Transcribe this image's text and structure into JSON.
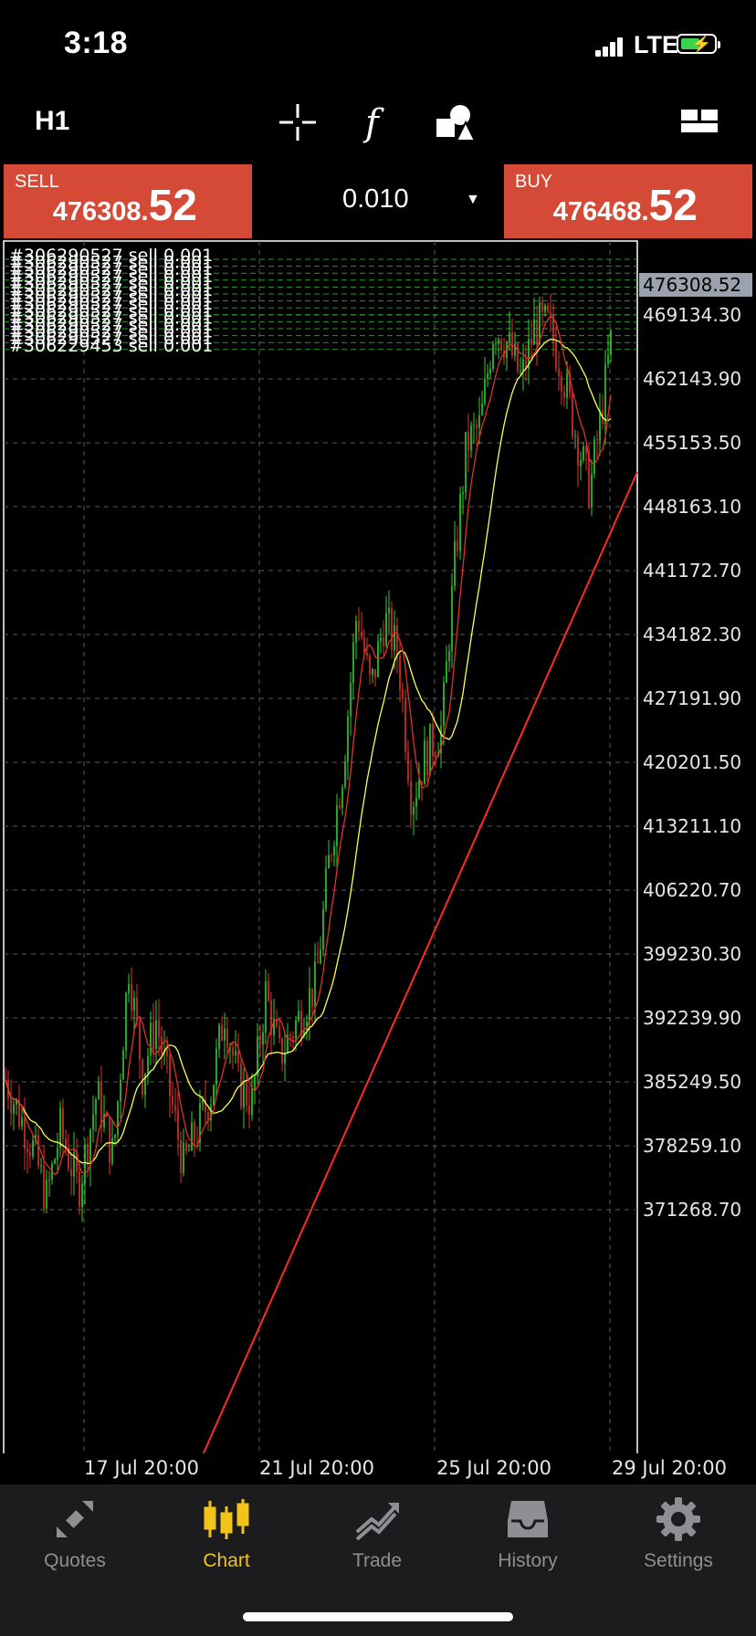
{
  "status_bar": {
    "time": "3:18",
    "network": "LTE"
  },
  "toolbar": {
    "timeframe": "H1",
    "icons": [
      "crosshair-icon",
      "indicators-icon",
      "objects-icon",
      "layout-icon"
    ]
  },
  "trade": {
    "sell_label": "SELL",
    "sell_price_main": "476308.",
    "sell_price_big": "52",
    "buy_label": "BUY",
    "buy_price_main": "476468.",
    "buy_price_big": "52",
    "volume": "0.010"
  },
  "chart": {
    "current_price": "476308.52",
    "price_labels": [
      "469134.30",
      "462143.90",
      "455153.50",
      "448163.10",
      "441172.70",
      "434182.30",
      "427191.90",
      "420201.50",
      "413211.10",
      "406220.70",
      "399230.30",
      "392239.90",
      "385249.50",
      "378259.10",
      "371268.70"
    ],
    "x_labels": [
      "17 Jul 20:00",
      "21 Jul 20:00",
      "25 Jul 20:00",
      "29 Jul 20:00"
    ],
    "order_label": "#306290527 sell 0.001",
    "order_label_last": "#306229453 sell 0.001"
  },
  "colors": {
    "bull": "#2fd12f",
    "bear": "#e0322a",
    "ma_fast": "#e0322a",
    "ma_slow": "#ffff55",
    "trendline": "#ff2a2a",
    "sell_buy_bg": "#d44a36",
    "active_tab": "#f2c318"
  },
  "tabs": [
    {
      "label": "Quotes",
      "icon": "quotes-icon"
    },
    {
      "label": "Chart",
      "icon": "chart-icon",
      "active": true
    },
    {
      "label": "Trade",
      "icon": "trade-icon"
    },
    {
      "label": "History",
      "icon": "history-icon"
    },
    {
      "label": "Settings",
      "icon": "settings-icon"
    }
  ]
}
